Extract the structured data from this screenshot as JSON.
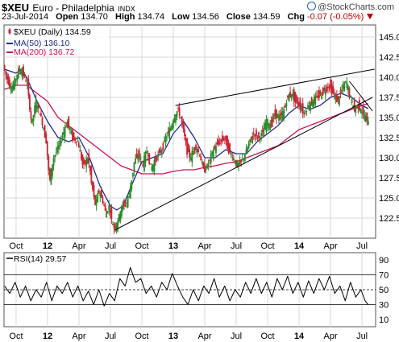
{
  "header": {
    "symbol": "$XEU",
    "name": "Euro - Philadelphia",
    "index_tag": "INDX",
    "date": "23-Jul-2014",
    "open_label": "Open",
    "open": "134.70",
    "high_label": "High",
    "high": "134.74",
    "low_label": "Low",
    "low": "134.56",
    "close_label": "Close",
    "close": "134.59",
    "chg_label": "Chg",
    "chg": "-0.07 (-0.05%)",
    "brand": "@StockCharts.com"
  },
  "colors": {
    "up": "#2a8a2a",
    "down": "#cc2233",
    "ma50": "#1e2a8c",
    "ma200": "#d01050",
    "grid": "#d8d8d8",
    "rsi": "#000000"
  },
  "chart_data": [
    {
      "type": "candlestick",
      "title": "$XEU (Daily) 134.59",
      "legend": [
        {
          "label": "$XEU (Daily) 134.59",
          "icon": "candle-icon"
        },
        {
          "label": "MA(50) 136.10",
          "color": "#1e2a8c"
        },
        {
          "label": "MA(200) 136.72",
          "color": "#d01050"
        }
      ],
      "x_ticks": [
        {
          "label": "Oct",
          "t": 0,
          "bold": false
        },
        {
          "label": "12",
          "t": 3,
          "bold": true
        },
        {
          "label": "Apr",
          "t": 6,
          "bold": false
        },
        {
          "label": "Jul",
          "t": 9,
          "bold": false
        },
        {
          "label": "Oct",
          "t": 12,
          "bold": false
        },
        {
          "label": "13",
          "t": 15,
          "bold": true
        },
        {
          "label": "Apr",
          "t": 18,
          "bold": false
        },
        {
          "label": "Jul",
          "t": 21,
          "bold": false
        },
        {
          "label": "Oct",
          "t": 24,
          "bold": false
        },
        {
          "label": "14",
          "t": 27,
          "bold": true
        },
        {
          "label": "Apr",
          "t": 30,
          "bold": false
        },
        {
          "label": "Jul",
          "t": 33,
          "bold": false
        }
      ],
      "y_ticks": [
        122.5,
        125.0,
        127.5,
        130.0,
        132.5,
        135.0,
        137.5,
        140.0,
        142.5,
        145.0
      ],
      "ylim": [
        120.0,
        146.5
      ],
      "xlim_months": [
        -1.15,
        34.3
      ],
      "price_path": [
        [
          -1.1,
          141.5
        ],
        [
          -0.8,
          140.0
        ],
        [
          -0.3,
          138.5
        ],
        [
          0.0,
          139.5
        ],
        [
          0.4,
          141.0
        ],
        [
          0.8,
          140.5
        ],
        [
          1.2,
          139.0
        ],
        [
          1.6,
          134.0
        ],
        [
          2.0,
          137.0
        ],
        [
          2.5,
          135.0
        ],
        [
          3.0,
          132.0
        ],
        [
          3.3,
          127.0
        ],
        [
          3.7,
          130.0
        ],
        [
          4.2,
          131.5
        ],
        [
          4.6,
          133.0
        ],
        [
          5.0,
          134.5
        ],
        [
          5.5,
          132.5
        ],
        [
          6.0,
          132.0
        ],
        [
          6.5,
          129.0
        ],
        [
          7.0,
          130.0
        ],
        [
          7.3,
          127.0
        ],
        [
          7.7,
          124.0
        ],
        [
          8.0,
          126.0
        ],
        [
          8.3,
          125.0
        ],
        [
          8.7,
          123.0
        ],
        [
          9.0,
          124.0
        ],
        [
          9.4,
          121.2
        ],
        [
          9.8,
          122.0
        ],
        [
          10.2,
          124.0
        ],
        [
          10.6,
          124.2
        ],
        [
          11.0,
          126.0
        ],
        [
          11.4,
          129.5
        ],
        [
          11.8,
          130.5
        ],
        [
          12.2,
          129.0
        ],
        [
          12.6,
          131.0
        ],
        [
          13.0,
          128.5
        ],
        [
          13.5,
          130.0
        ],
        [
          14.0,
          131.0
        ],
        [
          14.4,
          132.5
        ],
        [
          14.8,
          133.5
        ],
        [
          15.2,
          135.0
        ],
        [
          15.6,
          136.0
        ],
        [
          16.0,
          134.0
        ],
        [
          16.4,
          131.0
        ],
        [
          16.8,
          130.0
        ],
        [
          17.2,
          131.5
        ],
        [
          17.6,
          130.5
        ],
        [
          18.0,
          128.5
        ],
        [
          18.4,
          129.0
        ],
        [
          18.8,
          130.5
        ],
        [
          19.2,
          131.5
        ],
        [
          19.6,
          132.0
        ],
        [
          20.0,
          132.5
        ],
        [
          20.4,
          131.0
        ],
        [
          20.8,
          130.0
        ],
        [
          21.2,
          129.0
        ],
        [
          21.6,
          129.5
        ],
        [
          22.0,
          130.5
        ],
        [
          22.4,
          132.0
        ],
        [
          22.8,
          133.0
        ],
        [
          23.2,
          132.5
        ],
        [
          23.6,
          133.0
        ],
        [
          24.0,
          134.5
        ],
        [
          24.4,
          134.0
        ],
        [
          24.8,
          135.5
        ],
        [
          25.2,
          135.0
        ],
        [
          25.6,
          135.5
        ],
        [
          26.0,
          137.5
        ],
        [
          26.4,
          138.0
        ],
        [
          26.8,
          137.0
        ],
        [
          27.2,
          136.5
        ],
        [
          27.6,
          135.5
        ],
        [
          28.0,
          136.5
        ],
        [
          28.4,
          137.0
        ],
        [
          28.8,
          137.5
        ],
        [
          29.2,
          138.0
        ],
        [
          29.6,
          138.5
        ],
        [
          30.0,
          139.0
        ],
        [
          30.4,
          138.0
        ],
        [
          30.8,
          137.0
        ],
        [
          31.2,
          138.5
        ],
        [
          31.6,
          139.5
        ],
        [
          32.0,
          137.5
        ],
        [
          32.4,
          136.0
        ],
        [
          32.8,
          136.5
        ],
        [
          33.2,
          135.5
        ],
        [
          33.6,
          134.6
        ]
      ],
      "ma50_path": [
        [
          -1.1,
          141.0
        ],
        [
          0.0,
          140.5
        ],
        [
          0.5,
          141.0
        ],
        [
          1.0,
          140.0
        ],
        [
          2.0,
          137.0
        ],
        [
          3.0,
          134.5
        ],
        [
          4.0,
          132.5
        ],
        [
          5.0,
          132.0
        ],
        [
          6.0,
          132.5
        ],
        [
          7.0,
          130.0
        ],
        [
          8.0,
          126.5
        ],
        [
          9.0,
          124.0
        ],
        [
          9.6,
          123.5
        ],
        [
          10.2,
          124.0
        ],
        [
          11.0,
          126.5
        ],
        [
          12.0,
          129.5
        ],
        [
          13.0,
          130.0
        ],
        [
          14.0,
          130.5
        ],
        [
          15.0,
          133.0
        ],
        [
          16.0,
          134.5
        ],
        [
          17.0,
          132.5
        ],
        [
          18.0,
          130.0
        ],
        [
          19.0,
          130.0
        ],
        [
          20.0,
          131.0
        ],
        [
          21.0,
          130.5
        ],
        [
          22.0,
          130.5
        ],
        [
          23.0,
          132.0
        ],
        [
          24.0,
          133.0
        ],
        [
          25.0,
          134.0
        ],
        [
          26.0,
          135.5
        ],
        [
          27.0,
          136.5
        ],
        [
          28.0,
          136.0
        ],
        [
          29.0,
          136.5
        ],
        [
          30.0,
          137.5
        ],
        [
          31.0,
          138.0
        ],
        [
          32.0,
          137.5
        ],
        [
          33.0,
          136.5
        ],
        [
          33.6,
          136.1
        ]
      ],
      "ma200_path": [
        [
          -1.1,
          138.5
        ],
        [
          0.0,
          139.0
        ],
        [
          1.0,
          139.0
        ],
        [
          2.0,
          138.0
        ],
        [
          3.0,
          137.0
        ],
        [
          4.0,
          135.0
        ],
        [
          5.0,
          134.0
        ],
        [
          6.0,
          133.0
        ],
        [
          7.0,
          132.0
        ],
        [
          8.0,
          131.0
        ],
        [
          9.0,
          130.0
        ],
        [
          10.0,
          129.0
        ],
        [
          11.0,
          128.5
        ],
        [
          12.0,
          128.0
        ],
        [
          13.0,
          128.0
        ],
        [
          14.0,
          128.0
        ],
        [
          15.0,
          128.3
        ],
        [
          16.0,
          128.5
        ],
        [
          17.0,
          128.5
        ],
        [
          18.0,
          128.8
        ],
        [
          19.0,
          129.0
        ],
        [
          20.0,
          129.3
        ],
        [
          21.0,
          129.5
        ],
        [
          22.0,
          130.0
        ],
        [
          23.0,
          130.5
        ],
        [
          24.0,
          131.0
        ],
        [
          25.0,
          131.5
        ],
        [
          26.0,
          132.5
        ],
        [
          27.0,
          133.5
        ],
        [
          28.0,
          134.0
        ],
        [
          29.0,
          134.5
        ],
        [
          30.0,
          135.0
        ],
        [
          31.0,
          135.5
        ],
        [
          32.0,
          136.0
        ],
        [
          33.0,
          136.5
        ],
        [
          33.6,
          136.72
        ]
      ],
      "trendlines": [
        {
          "name": "upper-trendline",
          "from": [
            15.2,
            136.5
          ],
          "to": [
            34.2,
            141.0
          ]
        },
        {
          "name": "lower-trendline",
          "from": [
            9.4,
            121.0
          ],
          "to": [
            34.0,
            137.5
          ]
        },
        {
          "name": "short-down-trendline",
          "from": [
            31.8,
            139.5
          ],
          "to": [
            34.0,
            135.8
          ]
        }
      ]
    },
    {
      "type": "line",
      "title": "RSI(14) 29.57",
      "legend": [
        {
          "label": "RSI(14) 29.57",
          "color": "#000000"
        }
      ],
      "y_ticks": [
        10,
        30,
        50,
        70,
        90
      ],
      "reference_lines": [
        30,
        50,
        70
      ],
      "ylim": [
        0,
        100
      ],
      "rsi_path": [
        [
          -1.1,
          55
        ],
        [
          -0.6,
          45
        ],
        [
          -0.1,
          60
        ],
        [
          0.4,
          40
        ],
        [
          0.9,
          55
        ],
        [
          1.4,
          35
        ],
        [
          1.9,
          50
        ],
        [
          2.4,
          40
        ],
        [
          2.9,
          60
        ],
        [
          3.4,
          35
        ],
        [
          3.9,
          55
        ],
        [
          4.4,
          45
        ],
        [
          4.9,
          60
        ],
        [
          5.4,
          40
        ],
        [
          5.9,
          55
        ],
        [
          6.4,
          35
        ],
        [
          6.9,
          48
        ],
        [
          7.4,
          30
        ],
        [
          7.9,
          50
        ],
        [
          8.4,
          28
        ],
        [
          8.9,
          45
        ],
        [
          9.4,
          35
        ],
        [
          9.9,
          65
        ],
        [
          10.4,
          55
        ],
        [
          10.9,
          80
        ],
        [
          11.4,
          60
        ],
        [
          11.9,
          65
        ],
        [
          12.4,
          45
        ],
        [
          12.9,
          55
        ],
        [
          13.4,
          40
        ],
        [
          13.9,
          60
        ],
        [
          14.4,
          50
        ],
        [
          14.9,
          72
        ],
        [
          15.4,
          55
        ],
        [
          15.9,
          40
        ],
        [
          16.4,
          30
        ],
        [
          16.9,
          50
        ],
        [
          17.4,
          35
        ],
        [
          17.9,
          55
        ],
        [
          18.4,
          45
        ],
        [
          18.9,
          65
        ],
        [
          19.4,
          40
        ],
        [
          19.9,
          55
        ],
        [
          20.4,
          35
        ],
        [
          20.9,
          50
        ],
        [
          21.4,
          40
        ],
        [
          21.9,
          60
        ],
        [
          22.4,
          45
        ],
        [
          22.9,
          65
        ],
        [
          23.4,
          45
        ],
        [
          23.9,
          60
        ],
        [
          24.4,
          40
        ],
        [
          24.9,
          65
        ],
        [
          25.4,
          50
        ],
        [
          25.9,
          68
        ],
        [
          26.4,
          45
        ],
        [
          26.9,
          60
        ],
        [
          27.4,
          40
        ],
        [
          27.9,
          62
        ],
        [
          28.4,
          45
        ],
        [
          28.9,
          65
        ],
        [
          29.4,
          50
        ],
        [
          29.9,
          68
        ],
        [
          30.4,
          45
        ],
        [
          30.9,
          55
        ],
        [
          31.4,
          35
        ],
        [
          31.9,
          60
        ],
        [
          32.4,
          40
        ],
        [
          32.9,
          50
        ],
        [
          33.3,
          35
        ],
        [
          33.6,
          29.57
        ]
      ]
    }
  ]
}
